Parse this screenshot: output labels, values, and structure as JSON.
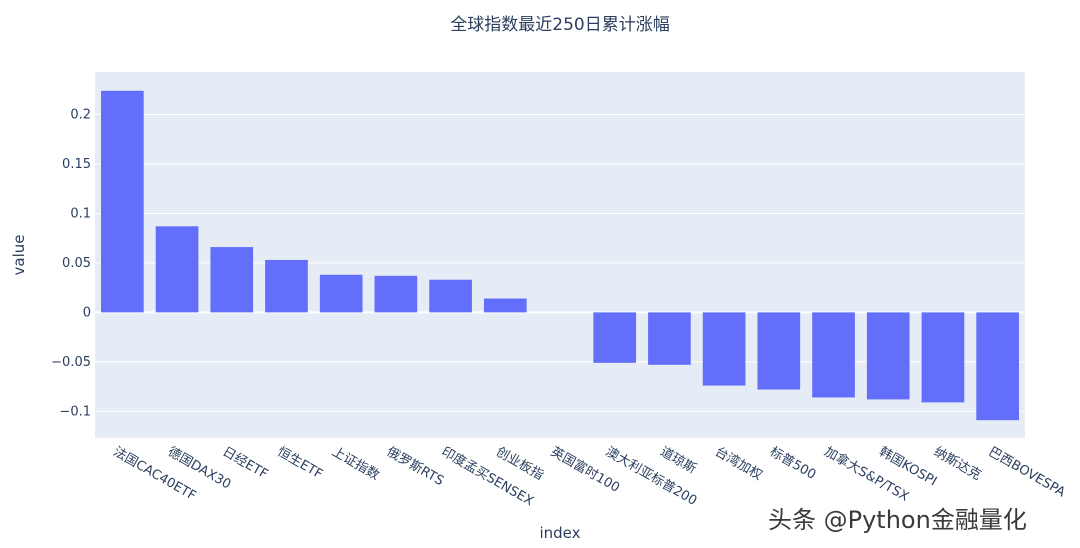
{
  "chart_data": {
    "type": "bar",
    "title": "全球指数最近250日累计涨幅",
    "xlabel": "index",
    "ylabel": "value",
    "categories": [
      "法国CAC40ETF",
      "德国DAX30",
      "日经ETF",
      "恒生ETF",
      "上证指数",
      "俄罗斯RTS",
      "印度孟买SENSEX",
      "创业板指",
      "英国富时100",
      "澳大利亚标普200",
      "道琼斯",
      "台湾加权",
      "标普500",
      "加拿大S&P/TSX",
      "韩国KOSPI",
      "纳斯达克",
      "巴西BOVESPA"
    ],
    "values": [
      0.224,
      0.087,
      0.066,
      0.053,
      0.038,
      0.037,
      0.033,
      0.014,
      0.0,
      -0.051,
      -0.053,
      -0.074,
      -0.078,
      -0.086,
      -0.088,
      -0.091,
      -0.109
    ],
    "yticks": [
      -0.1,
      -0.05,
      0,
      0.05,
      0.1,
      0.15,
      0.2
    ],
    "ytick_labels": [
      "−0.1",
      "−0.05",
      "0",
      "0.05",
      "0.1",
      "0.15",
      "0.2"
    ],
    "ylim": [
      -0.127,
      0.243
    ],
    "grid": true,
    "colors": {
      "bar": "#636efa",
      "plot_bg": "#e5ecf6",
      "grid": "#ffffff"
    }
  },
  "watermark": "头条 @Python金融量化"
}
